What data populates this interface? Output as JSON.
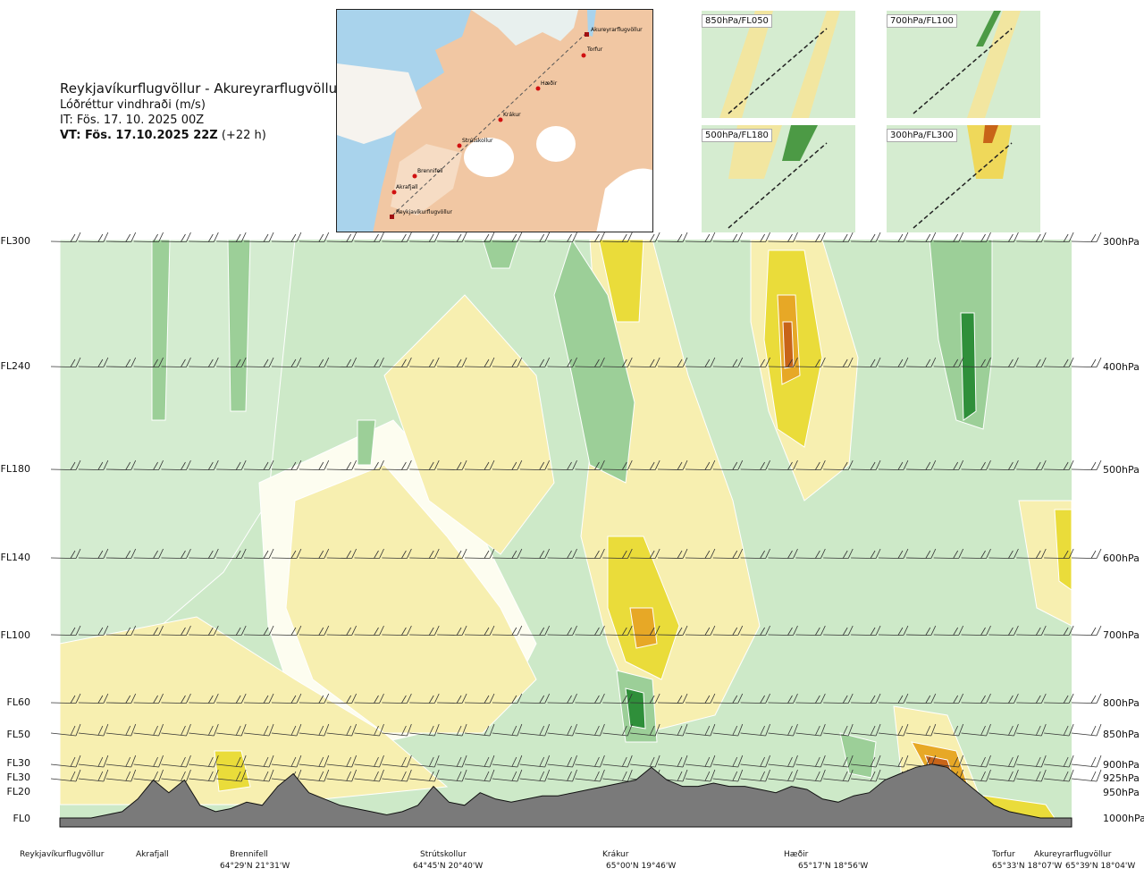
{
  "header": {
    "route": "Reykjavíkurflugvöllur - Akureyrarflugvöllur",
    "parameter": "Lóðréttur vindhraði (m/s)",
    "issue_time": "IT: Fös. 17. 10. 2025 00Z",
    "valid_prefix": "VT: Fös. 17.10.2025 22Z",
    "valid_offset": "(+22 h)"
  },
  "map": {
    "places": [
      "Akureyrarflugvöllur",
      "Torfur",
      "Hæðir",
      "Krákur",
      "Strútskollur",
      "Brennifell",
      "Akrafjall",
      "Reykjavíkurflugvöllur"
    ]
  },
  "insets": [
    {
      "label": "850hPa/FL050"
    },
    {
      "label": "700hPa/FL100"
    },
    {
      "label": "500hPa/FL180"
    },
    {
      "label": "300hPa/FL300"
    }
  ],
  "colors": {
    "strong_down": "#2f8f3a",
    "mod_down": "#9ccf98",
    "weak_down": "#d4ecd0",
    "neutral": "#fdfdf0",
    "weak_up": "#f7efb0",
    "mod_up": "#eadc3a",
    "strong_up": "#e7a826",
    "very_strong_up": "#c86418",
    "terrain": "#7a7a7a",
    "background": "#cde9c8"
  },
  "chart_data": {
    "type": "heatmap",
    "title": "Lóðréttur vindhraði (m/s)",
    "xlabel": "",
    "ylabel": "",
    "left_axis_flight_levels": [
      "FL300",
      "FL240",
      "FL180",
      "FL140",
      "FL100",
      "FL60",
      "FL50",
      "FL30",
      "FL30",
      "FL20",
      "FL0"
    ],
    "right_axis_pressure": [
      "300hPa",
      "400hPa",
      "500hPa",
      "600hPa",
      "700hPa",
      "800hPa",
      "850hPa",
      "900hPa",
      "925hPa",
      "950hPa",
      "1000hPa"
    ],
    "waypoints": [
      {
        "name": "Reykjavíkurflugvöllur",
        "coord": ""
      },
      {
        "name": "Akrafjall",
        "coord": ""
      },
      {
        "name": "Brennifell",
        "coord": "64°29'N 21°31'W"
      },
      {
        "name": "Strútskollur",
        "coord": "64°45'N 20°40'W"
      },
      {
        "name": "Krákur",
        "coord": "65°00'N 19°46'W"
      },
      {
        "name": "Hæðir",
        "coord": "65°17'N 18°56'W"
      },
      {
        "name": "Torfur",
        "coord": "65°33'N 18°07'W"
      },
      {
        "name": "Akureyrarflugvöllur",
        "coord": "65°39'N 18°04'W"
      }
    ],
    "terrain_profile_km": [
      0.0,
      0.0,
      0.0,
      0.05,
      0.1,
      0.3,
      0.6,
      0.4,
      0.6,
      0.2,
      0.1,
      0.15,
      0.25,
      0.2,
      0.5,
      0.7,
      0.4,
      0.3,
      0.2,
      0.15,
      0.1,
      0.05,
      0.1,
      0.2,
      0.5,
      0.25,
      0.2,
      0.4,
      0.3,
      0.25,
      0.3,
      0.35,
      0.35,
      0.4,
      0.45,
      0.5,
      0.55,
      0.6,
      0.8,
      0.6,
      0.5,
      0.5,
      0.55,
      0.5,
      0.5,
      0.45,
      0.4,
      0.5,
      0.45,
      0.3,
      0.25,
      0.35,
      0.4,
      0.6,
      0.7,
      0.8,
      0.85,
      0.8,
      0.6,
      0.4,
      0.2,
      0.1,
      0.05,
      0.0,
      0.0,
      0.0
    ],
    "wind_barb_levels": [
      "300hPa",
      "400hPa",
      "500hPa",
      "600hPa",
      "700hPa",
      "800hPa",
      "850hPa",
      "900hPa",
      "925hPa"
    ],
    "vertical_velocity_bands_ms": [
      -1.0,
      -0.5,
      -0.2,
      -0.05,
      0.05,
      0.2,
      0.5,
      1.0,
      2.0
    ],
    "band_labels": [
      "strong_down",
      "mod_down",
      "weak_down",
      "neutral",
      "weak_up",
      "mod_up",
      "strong_up",
      "very_strong_up"
    ],
    "x_range": [
      0,
      1
    ],
    "y_range_hPa": [
      1000,
      300
    ]
  }
}
